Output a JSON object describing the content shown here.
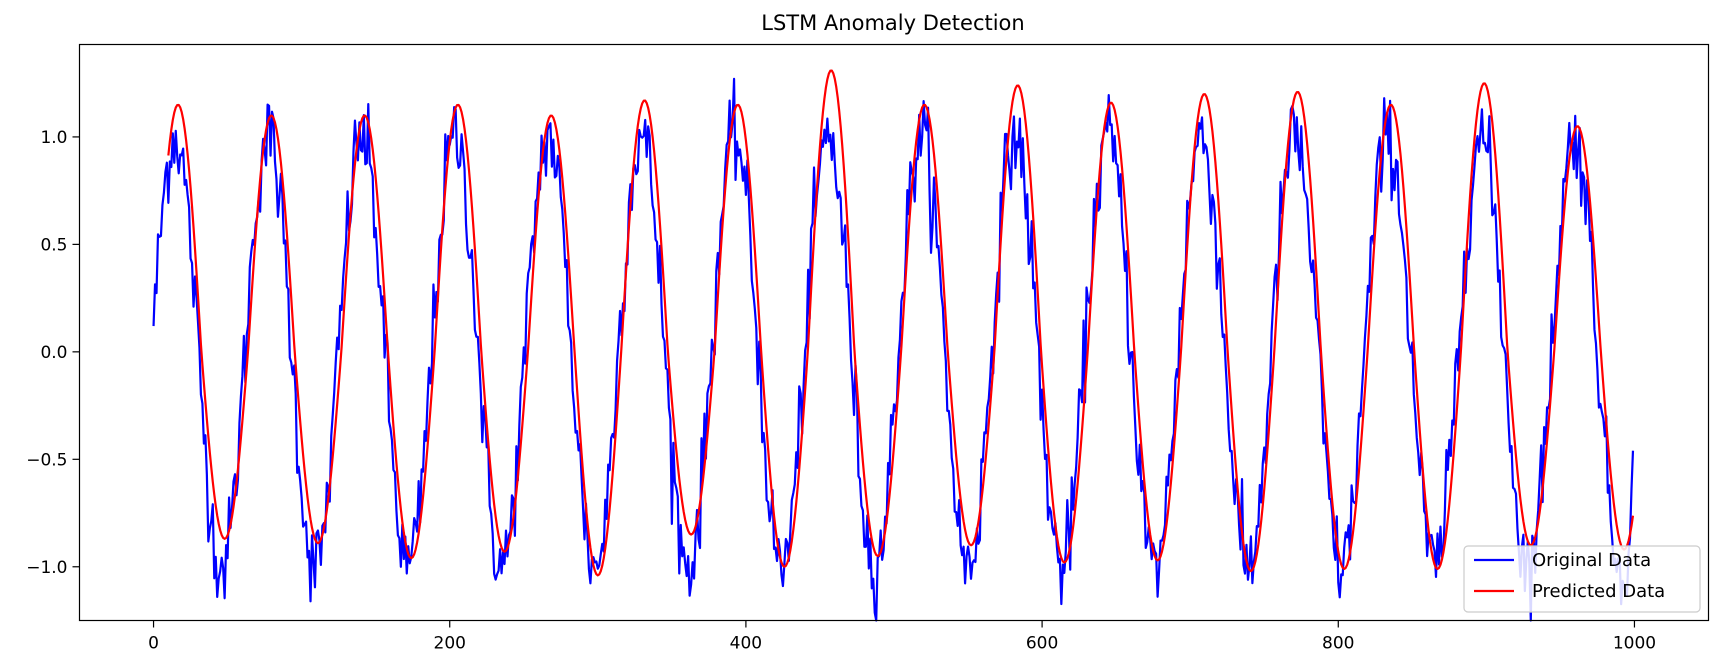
{
  "chart_data": {
    "type": "line",
    "title": "LSTM Anomaly Detection",
    "xlabel": "",
    "ylabel": "",
    "xlim": [
      -50,
      1050
    ],
    "ylim": [
      -1.25,
      1.43
    ],
    "xticks": [
      0,
      200,
      400,
      600,
      800,
      1000
    ],
    "yticks": [
      -1.0,
      -0.5,
      0.0,
      0.5,
      1.0
    ],
    "grid": false,
    "legend": {
      "placement": "bottom-right",
      "entries": [
        "Original Data",
        "Predicted Data"
      ]
    },
    "period_samples": 63,
    "series": [
      {
        "name": "Original Data",
        "color": "#0000ff",
        "x_start": 0,
        "x_end": 999,
        "shape": "noisy sine, amplitude ~1.0 with noise sd ~0.1",
        "first_value": 0.12,
        "last_value": -0.46,
        "max_value": 1.27,
        "min_value": -1.25
      },
      {
        "name": "Predicted Data",
        "color": "#ff0000",
        "x_start": 10,
        "x_end": 999,
        "peaks": [
          1.15,
          1.1,
          1.1,
          1.15,
          1.1,
          1.17,
          1.15,
          1.31,
          1.15,
          1.24,
          1.16,
          1.2,
          1.21,
          1.15,
          1.25,
          1.05
        ],
        "troughs": [
          -0.87,
          -0.89,
          -0.96,
          -0.93,
          -1.04,
          -0.85,
          -1.0,
          -0.95,
          -0.9,
          -0.98,
          -0.97,
          -1.02,
          -1.01,
          -1.01,
          -0.9,
          -0.92
        ]
      }
    ]
  }
}
